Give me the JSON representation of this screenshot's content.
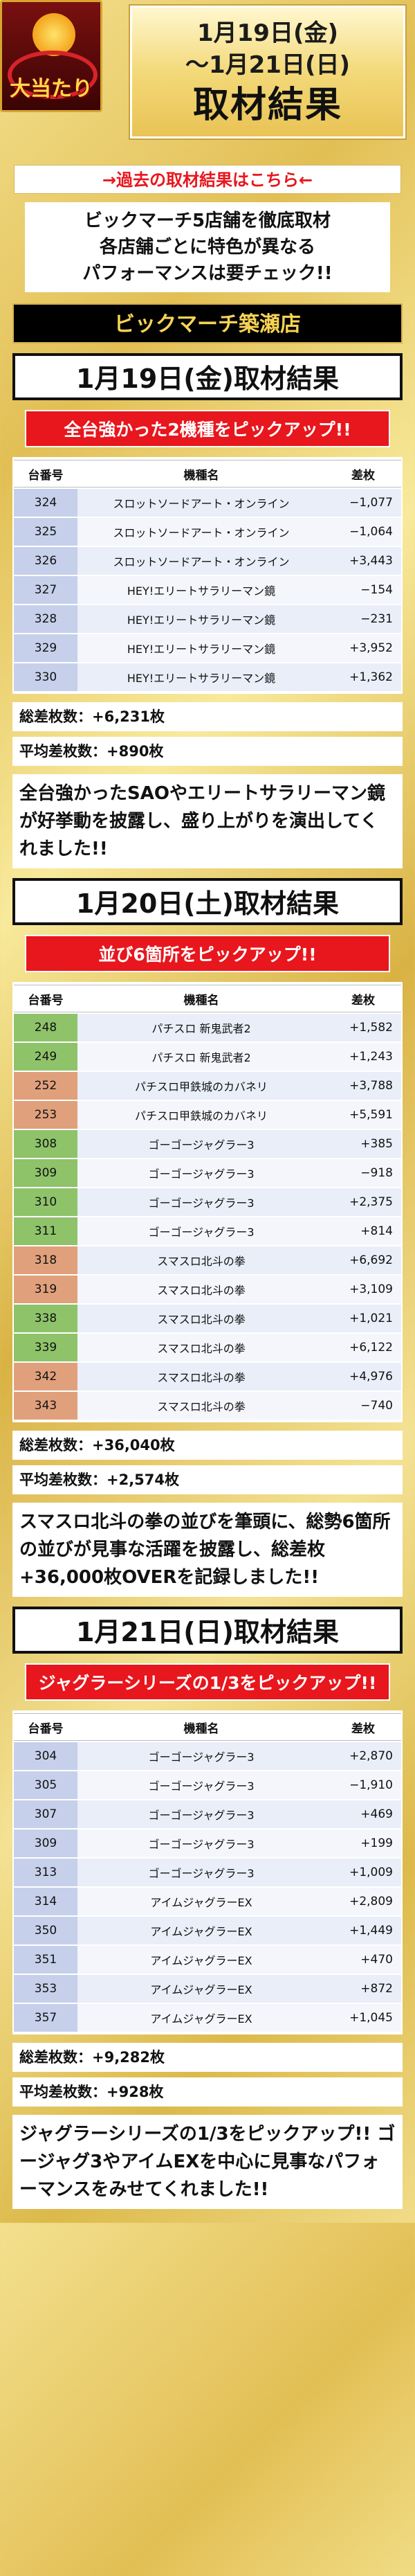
{
  "header": {
    "logo_text": "大当たり",
    "date_line1": "1月19日(金)",
    "date_line2": "〜1月21日(日)",
    "title": "取材結果"
  },
  "past_link": "→過去の取材結果はこちら←",
  "intro": [
    "ビックマーチ5店舗を徹底取材",
    "各店舗ごとに特色が異なる",
    "パフォーマンスは要チェック!!"
  ],
  "shop_name": "ビックマーチ築瀬店",
  "columns": {
    "num": "台番号",
    "name": "機種名",
    "diff": "差枚"
  },
  "days": [
    {
      "title": "1月19日(金)取材結果",
      "pick": "全台強かった2機種をピックアップ!!",
      "rows": [
        {
          "num": "324",
          "name": "スロットソードアート・オンライン",
          "diff": "−1,077",
          "color": "blue"
        },
        {
          "num": "325",
          "name": "スロットソードアート・オンライン",
          "diff": "−1,064",
          "color": "blue"
        },
        {
          "num": "326",
          "name": "スロットソードアート・オンライン",
          "diff": "+3,443",
          "color": "blue"
        },
        {
          "num": "327",
          "name": "HEY!エリートサラリーマン鏡",
          "diff": "−154",
          "color": "blue"
        },
        {
          "num": "328",
          "name": "HEY!エリートサラリーマン鏡",
          "diff": "−231",
          "color": "blue"
        },
        {
          "num": "329",
          "name": "HEY!エリートサラリーマン鏡",
          "diff": "+3,952",
          "color": "blue"
        },
        {
          "num": "330",
          "name": "HEY!エリートサラリーマン鏡",
          "diff": "+1,362",
          "color": "blue"
        }
      ],
      "total": "総差枚数：+6,231枚",
      "average": "平均差枚数：+890枚",
      "summary": "全台強かったSAOやエリートサラリーマン鏡が好挙動を披露し、盛り上がりを演出してくれました!!"
    },
    {
      "title": "1月20日(土)取材結果",
      "pick": "並び6箇所をピックアップ!!",
      "rows": [
        {
          "num": "248",
          "name": "パチスロ 新鬼武者2",
          "diff": "+1,582",
          "color": "green"
        },
        {
          "num": "249",
          "name": "パチスロ 新鬼武者2",
          "diff": "+1,243",
          "color": "green"
        },
        {
          "num": "252",
          "name": "パチスロ甲鉄城のカバネリ",
          "diff": "+3,788",
          "color": "orange"
        },
        {
          "num": "253",
          "name": "パチスロ甲鉄城のカバネリ",
          "diff": "+5,591",
          "color": "orange"
        },
        {
          "num": "308",
          "name": "ゴーゴージャグラー3",
          "diff": "+385",
          "color": "green"
        },
        {
          "num": "309",
          "name": "ゴーゴージャグラー3",
          "diff": "−918",
          "color": "green"
        },
        {
          "num": "310",
          "name": "ゴーゴージャグラー3",
          "diff": "+2,375",
          "color": "green"
        },
        {
          "num": "311",
          "name": "ゴーゴージャグラー3",
          "diff": "+814",
          "color": "green"
        },
        {
          "num": "318",
          "name": "スマスロ北斗の拳",
          "diff": "+6,692",
          "color": "orange"
        },
        {
          "num": "319",
          "name": "スマスロ北斗の拳",
          "diff": "+3,109",
          "color": "orange"
        },
        {
          "num": "338",
          "name": "スマスロ北斗の拳",
          "diff": "+1,021",
          "color": "green"
        },
        {
          "num": "339",
          "name": "スマスロ北斗の拳",
          "diff": "+6,122",
          "color": "green"
        },
        {
          "num": "342",
          "name": "スマスロ北斗の拳",
          "diff": "+4,976",
          "color": "orange"
        },
        {
          "num": "343",
          "name": "スマスロ北斗の拳",
          "diff": "−740",
          "color": "orange"
        }
      ],
      "total": "総差枚数：+36,040枚",
      "average": "平均差枚数：+2,574枚",
      "summary": "スマスロ北斗の拳の並びを筆頭に、総勢6箇所の並びが見事な活躍を披露し、総差枚+36,000枚OVERを記録しました!!"
    },
    {
      "title": "1月21日(日)取材結果",
      "pick": "ジャグラーシリーズの1/3をピックアップ!!",
      "rows": [
        {
          "num": "304",
          "name": "ゴーゴージャグラー3",
          "diff": "+2,870",
          "color": "blue"
        },
        {
          "num": "305",
          "name": "ゴーゴージャグラー3",
          "diff": "−1,910",
          "color": "blue"
        },
        {
          "num": "307",
          "name": "ゴーゴージャグラー3",
          "diff": "+469",
          "color": "blue"
        },
        {
          "num": "309",
          "name": "ゴーゴージャグラー3",
          "diff": "+199",
          "color": "blue"
        },
        {
          "num": "313",
          "name": "ゴーゴージャグラー3",
          "diff": "+1,009",
          "color": "blue"
        },
        {
          "num": "314",
          "name": "アイムジャグラーEX",
          "diff": "+2,809",
          "color": "blue"
        },
        {
          "num": "350",
          "name": "アイムジャグラーEX",
          "diff": "+1,449",
          "color": "blue"
        },
        {
          "num": "351",
          "name": "アイムジャグラーEX",
          "diff": "+470",
          "color": "blue"
        },
        {
          "num": "353",
          "name": "アイムジャグラーEX",
          "diff": "+872",
          "color": "blue"
        },
        {
          "num": "357",
          "name": "アイムジャグラーEX",
          "diff": "+1,045",
          "color": "blue"
        }
      ],
      "total": "総差枚数：+9,282枚",
      "average": "平均差枚数：+928枚",
      "summary": "ジャグラーシリーズの1/3をピックアップ!! ゴージャグ3やアイムEXを中心に見事なパフォーマンスをみせてくれました!!"
    }
  ]
}
